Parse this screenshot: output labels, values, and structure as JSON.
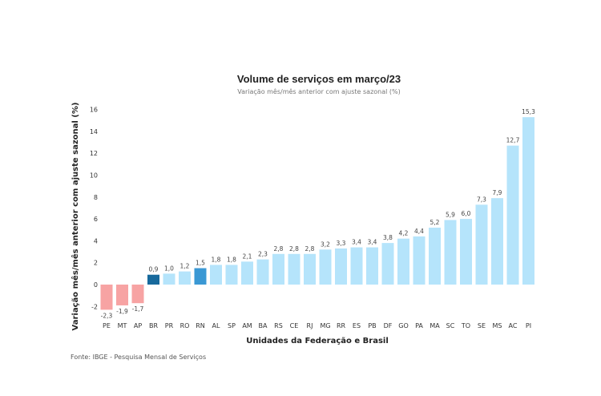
{
  "chart_data": {
    "type": "bar",
    "title": "Volume de serviços em março/23",
    "subtitle": "Variação mês/mês anterior com ajuste sazonal (%)",
    "xlabel": "Unidades da Federação e Brasil",
    "ylabel": "Variação mês/mês anterior com ajuste sazonal (%)",
    "ylim": [
      -2.6,
      16
    ],
    "yticks": [
      -2,
      0,
      2,
      4,
      6,
      8,
      10,
      12,
      14,
      16
    ],
    "grid": false,
    "categories": [
      "PE",
      "MT",
      "AP",
      "BR",
      "PR",
      "RO",
      "RN",
      "AL",
      "SP",
      "AM",
      "BA",
      "RS",
      "CE",
      "RJ",
      "MG",
      "RR",
      "ES",
      "PB",
      "DF",
      "GO",
      "PA",
      "MA",
      "SC",
      "TO",
      "SE",
      "MS",
      "AC",
      "PI"
    ],
    "values": [
      -2.3,
      -1.9,
      -1.7,
      0.9,
      1.0,
      1.2,
      1.5,
      1.8,
      1.8,
      2.1,
      2.3,
      2.8,
      2.8,
      2.8,
      3.2,
      3.3,
      3.4,
      3.4,
      3.8,
      4.2,
      4.4,
      5.2,
      5.9,
      6.0,
      7.3,
      7.9,
      12.7,
      15.3
    ],
    "value_labels": [
      "-2,3",
      "-1,9",
      "-1,7",
      "0,9",
      "1,0",
      "1,2",
      "1,5",
      "1,8",
      "1,8",
      "2,1",
      "2,3",
      "2,8",
      "2,8",
      "2,8",
      "3,2",
      "3,3",
      "3,4",
      "3,4",
      "3,8",
      "4,2",
      "4,4",
      "5,2",
      "5,9",
      "6,0",
      "7,3",
      "7,9",
      "12,7",
      "15,3"
    ],
    "colors": {
      "negative": "#f7a3a3",
      "positive": "#b5e4fb",
      "brasil": "#17699c",
      "highlight": "#3a98d4"
    },
    "highlight_categories": {
      "BR": "brasil",
      "RN": "highlight"
    }
  },
  "source": "Fonte: IBGE - Pesquisa Mensal de Serviços"
}
